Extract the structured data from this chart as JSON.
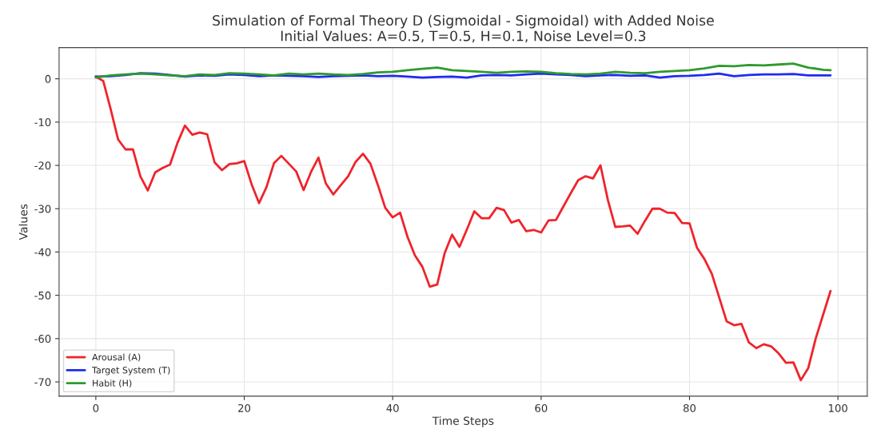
{
  "chart_data": {
    "type": "line",
    "title": "Simulation of Formal Theory D (Sigmoidal - Sigmoidal) with Added Noise\nInitial Values: A=0.5, T=0.5, H=0.1, Noise Level=0.3",
    "xlabel": "Time Steps",
    "ylabel": "Values",
    "series": [
      {
        "name": "Arousal (A)",
        "color": "#f0232b",
        "x": [
          0,
          1,
          2,
          3,
          4,
          5,
          6,
          7,
          8,
          9,
          10,
          11,
          12,
          13,
          14,
          15,
          16,
          17,
          18,
          19,
          20,
          21,
          22,
          23,
          24,
          25,
          26,
          27,
          28,
          29,
          30,
          31,
          32,
          33,
          34,
          35,
          36,
          37,
          38,
          39,
          40,
          41,
          42,
          43,
          44,
          45,
          46,
          47,
          48,
          49,
          50,
          51,
          52,
          53,
          54,
          55,
          56,
          57,
          58,
          59,
          60,
          61,
          62,
          63,
          64,
          65,
          66,
          67,
          68,
          69,
          70,
          71,
          72,
          73,
          74,
          75,
          76,
          77,
          78,
          79,
          80,
          81,
          82,
          83,
          84,
          85,
          86,
          87,
          88,
          89,
          90,
          91,
          92,
          93,
          94,
          95,
          96,
          97,
          98,
          99
        ],
        "values": [
          0.5,
          -0.5,
          -7,
          -14,
          -16.3,
          -16.3,
          -22.5,
          -25.8,
          -21.6,
          -20.6,
          -19.8,
          -14.8,
          -10.8,
          -12.9,
          -12.4,
          -12.8,
          -19.3,
          -21.1,
          -19.7,
          -19.5,
          -19,
          -24.4,
          -28.7,
          -25,
          -19.5,
          -17.8,
          -19.6,
          -21.4,
          -25.7,
          -21.5,
          -18.2,
          -24.2,
          -26.7,
          -24.6,
          -22.5,
          -19.2,
          -17.3,
          -19.6,
          -24.5,
          -29.8,
          -32,
          -30.9,
          -36.5,
          -40.8,
          -43.4,
          -48,
          -47.5,
          -40.3,
          -36,
          -38.8,
          -34.8,
          -30.6,
          -32.2,
          -32.2,
          -29.8,
          -30.3,
          -33.2,
          -32.6,
          -35.2,
          -34.9,
          -35.5,
          -32.7,
          -32.6,
          -29.5,
          -26.4,
          -23.4,
          -22.5,
          -23,
          -20,
          -28,
          -34.2,
          -34.1,
          -33.9,
          -35.8,
          -32.8,
          -30,
          -30,
          -30.9,
          -31,
          -33.3,
          -33.4,
          -39,
          -41.6,
          -45,
          -50.5,
          -56,
          -56.9,
          -56.6,
          -60.9,
          -62.2,
          -61.3,
          -61.8,
          -63.4,
          -65.6,
          -65.5,
          -69.6,
          -66.8,
          -60,
          -54.5,
          -49
        ]
      },
      {
        "name": "Target System (T)",
        "color": "#1f2bf0",
        "x": [
          0,
          2,
          4,
          6,
          8,
          10,
          12,
          14,
          16,
          18,
          20,
          22,
          24,
          26,
          28,
          30,
          32,
          34,
          36,
          38,
          40,
          42,
          44,
          46,
          48,
          50,
          52,
          54,
          56,
          58,
          60,
          62,
          64,
          66,
          68,
          70,
          72,
          74,
          76,
          78,
          80,
          82,
          84,
          86,
          88,
          90,
          92,
          94,
          96,
          98,
          99
        ],
        "values": [
          0.5,
          0.6,
          0.9,
          1.3,
          1.2,
          0.9,
          0.5,
          0.8,
          0.7,
          1.0,
          0.9,
          0.6,
          0.8,
          0.7,
          0.6,
          0.4,
          0.6,
          0.7,
          0.8,
          0.6,
          0.7,
          0.5,
          0.3,
          0.4,
          0.5,
          0.3,
          0.8,
          0.9,
          0.8,
          1.0,
          1.2,
          1.0,
          0.9,
          0.6,
          0.8,
          0.9,
          0.7,
          0.8,
          0.3,
          0.6,
          0.7,
          0.9,
          1.2,
          0.6,
          0.9,
          1.0,
          1.0,
          1.1,
          0.8,
          0.8,
          0.8
        ]
      },
      {
        "name": "Habit (H)",
        "color": "#2e9a2e",
        "x": [
          0,
          2,
          4,
          6,
          8,
          10,
          12,
          14,
          16,
          18,
          20,
          22,
          24,
          26,
          28,
          30,
          32,
          34,
          36,
          38,
          40,
          42,
          44,
          46,
          48,
          50,
          52,
          54,
          56,
          58,
          60,
          62,
          64,
          66,
          68,
          70,
          72,
          74,
          76,
          78,
          80,
          82,
          84,
          86,
          88,
          90,
          92,
          94,
          96,
          98,
          99
        ],
        "values": [
          0.3,
          0.8,
          1.0,
          1.2,
          1.0,
          0.8,
          0.6,
          1.0,
          0.9,
          1.3,
          1.2,
          1.0,
          0.8,
          1.2,
          1.0,
          1.2,
          1.0,
          0.9,
          1.1,
          1.5,
          1.6,
          2.0,
          2.3,
          2.6,
          2.0,
          1.8,
          1.6,
          1.4,
          1.6,
          1.7,
          1.6,
          1.3,
          1.1,
          1.0,
          1.2,
          1.6,
          1.4,
          1.3,
          1.6,
          1.8,
          2.0,
          2.4,
          3.0,
          2.9,
          3.2,
          3.1,
          3.3,
          3.5,
          2.6,
          2.1,
          2.0
        ]
      }
    ],
    "xlim": [
      -4.95,
      103.95
    ],
    "xticks": [
      0,
      20,
      40,
      60,
      80,
      100
    ],
    "ylim": [
      -73.3,
      7.2
    ],
    "yticks": [
      -70,
      -60,
      -50,
      -40,
      -30,
      -20,
      -10,
      0
    ],
    "grid": true,
    "legend": "bottom left",
    "line_style": "solid",
    "marker": "none"
  }
}
